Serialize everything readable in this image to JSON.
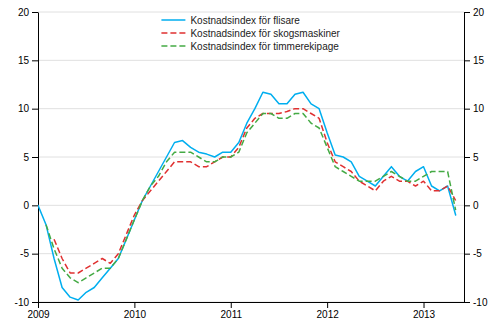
{
  "chart_data": {
    "type": "line",
    "x": [
      2009.0,
      2009.0833333333333,
      2009.1666666666667,
      2009.25,
      2009.3333333333333,
      2009.4166666666667,
      2009.5,
      2009.5833333333333,
      2009.6666666666667,
      2009.75,
      2009.8333333333333,
      2009.9166666666667,
      2010.0,
      2010.0833333333333,
      2010.1666666666667,
      2010.25,
      2010.3333333333333,
      2010.4166666666667,
      2010.5,
      2010.5833333333333,
      2010.6666666666667,
      2010.75,
      2010.8333333333333,
      2010.9166666666667,
      2011.0,
      2011.0833333333333,
      2011.1666666666667,
      2011.25,
      2011.3333333333333,
      2011.4166666666667,
      2011.5,
      2011.5833333333333,
      2011.6666666666667,
      2011.75,
      2011.8333333333333,
      2011.9166666666667,
      2012.0,
      2012.0833333333333,
      2012.1666666666667,
      2012.25,
      2012.3333333333333,
      2012.4166666666667,
      2012.5,
      2012.5833333333333,
      2012.6666666666667,
      2012.75,
      2012.8333333333333,
      2012.9166666666667,
      2013.0,
      2013.0833333333333,
      2013.1666666666667,
      2013.25,
      2013.3333333333333
    ],
    "series": [
      {
        "name": "Kostnadsindex för flisare",
        "color": "#00AEEF",
        "line_style": "solid",
        "values": [
          0.0,
          -2.0,
          -5.5,
          -8.5,
          -9.5,
          -9.8,
          -9.0,
          -8.5,
          -7.5,
          -6.5,
          -5.5,
          -3.5,
          -1.5,
          0.5,
          2.0,
          3.5,
          5.0,
          6.5,
          6.7,
          6.0,
          5.5,
          5.3,
          5.0,
          5.5,
          5.5,
          6.5,
          8.5,
          10.0,
          11.7,
          11.5,
          10.5,
          10.5,
          11.5,
          11.7,
          10.5,
          10.0,
          7.5,
          5.2,
          5.0,
          4.5,
          3.0,
          2.5,
          2.0,
          3.0,
          4.0,
          3.0,
          2.5,
          3.5,
          4.0,
          2.0,
          1.5,
          2.0,
          -1.0
        ]
      },
      {
        "name": "Kostnadsindex för skogsmaskiner",
        "color": "#E03030",
        "line_style": "dashed",
        "values": [
          null,
          null,
          -3.5,
          -5.5,
          -7.0,
          -7.0,
          -6.5,
          -6.0,
          -5.5,
          -6.0,
          -5.0,
          -3.0,
          -1.0,
          0.5,
          1.5,
          2.5,
          3.5,
          4.5,
          4.5,
          4.5,
          4.0,
          4.0,
          4.5,
          5.0,
          5.0,
          6.0,
          8.0,
          9.0,
          9.5,
          9.5,
          9.5,
          9.7,
          10.0,
          10.0,
          9.5,
          9.0,
          6.5,
          4.5,
          4.0,
          3.5,
          2.5,
          2.0,
          1.5,
          2.5,
          3.0,
          2.5,
          2.5,
          2.0,
          2.5,
          1.5,
          1.5,
          2.0,
          0.5
        ]
      },
      {
        "name": "Kostnadsindex för timmerekipage",
        "color": "#44AA44",
        "line_style": "dashed",
        "values": [
          null,
          -2.0,
          -4.5,
          -6.5,
          -7.5,
          -8.0,
          -7.5,
          -7.0,
          -6.5,
          -6.5,
          -5.5,
          -3.5,
          -1.5,
          0.5,
          2.0,
          3.0,
          4.5,
          5.5,
          5.5,
          5.5,
          5.0,
          4.5,
          4.5,
          5.0,
          5.0,
          5.5,
          7.5,
          8.5,
          9.5,
          9.5,
          9.0,
          9.0,
          9.5,
          9.5,
          8.5,
          8.0,
          6.0,
          4.0,
          3.5,
          3.0,
          2.5,
          2.5,
          2.5,
          3.0,
          3.5,
          3.0,
          2.5,
          2.5,
          3.0,
          3.5,
          3.5,
          3.5,
          -0.5
        ]
      }
    ],
    "xlim": [
      2009.0,
      2013.42
    ],
    "xticks": [
      2009,
      2010,
      2011,
      2012,
      2013
    ],
    "ylim": [
      -10,
      20
    ],
    "yticks": [
      -10,
      -5,
      0,
      5,
      10,
      15,
      20
    ],
    "y2lim": [
      -10,
      20
    ],
    "y2ticks": [
      -10,
      -5,
      0,
      5,
      10,
      15,
      20
    ],
    "grid": true,
    "legend": "top"
  }
}
